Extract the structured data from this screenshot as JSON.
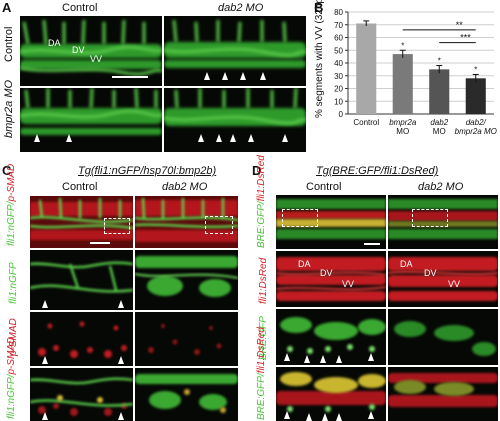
{
  "panel_a": {
    "letter": "A",
    "col_control": "Control",
    "col_dab2": "dab2 MO",
    "row_control": "Control",
    "row_bmpr2a": "bmpr2a MO",
    "tissue_da": "DA",
    "tissue_dv": "DV",
    "tissue_vv": "VV"
  },
  "panel_b": {
    "letter": "B",
    "chart_data": {
      "type": "bar",
      "categories": [
        "Control",
        "bmpr2a MO",
        "dab2 MO",
        "dab2/ bmpr2a MO"
      ],
      "category_lines": [
        [
          "Control"
        ],
        [
          "bmpr2a",
          "MO"
        ],
        [
          "dab2",
          "MO"
        ],
        [
          "dab2/",
          "bmpr2a MO"
        ]
      ],
      "values": [
        71,
        47,
        35,
        28
      ],
      "errors": [
        2,
        3,
        3,
        3
      ],
      "ylabel": "% segments with VV (32hpf)",
      "ylim": [
        0,
        80
      ],
      "yticks": [
        0,
        10,
        20,
        30,
        40,
        50,
        60,
        70,
        80
      ],
      "bar_colors": [
        "#a8a8a8",
        "#7a7a7a",
        "#555555",
        "#2a2a2a"
      ],
      "asterisks": [
        "",
        "*",
        "*",
        "*"
      ],
      "significance": [
        "**",
        "***"
      ]
    }
  },
  "panel_c": {
    "letter": "C",
    "title": "Tg(fli1:nGFP/hsp70l:bmp2b)",
    "col_control": "Control",
    "col_dab2": "dab2 MO",
    "row1_label_a": "fli1:nGFP/",
    "row1_label_b": "p-SMAD",
    "row2_label": "fli1:nGFP",
    "row3_label": "p-SMAD",
    "row4_label_a": "fli1:nGFP/",
    "row4_label_b": "p-SMAD"
  },
  "panel_d": {
    "letter": "D",
    "title": "Tg(BRE:GFP/fli1:DsRed)",
    "col_control": "Control",
    "col_dab2": "dab2 MO",
    "row1_label_a": "BRE:GFP/",
    "row1_label_b": "fli1:DsRed",
    "row2_label": "fli1:DsRed",
    "row3_label": "BRE:GFP",
    "row4_label_a": "BRE:GFP/",
    "row4_label_b": "fli1:DsRed",
    "tissue_da": "DA",
    "tissue_dv": "DV",
    "tissue_vv": "VV"
  },
  "colors": {
    "green": "#4cc63a",
    "red": "#d2232a"
  }
}
